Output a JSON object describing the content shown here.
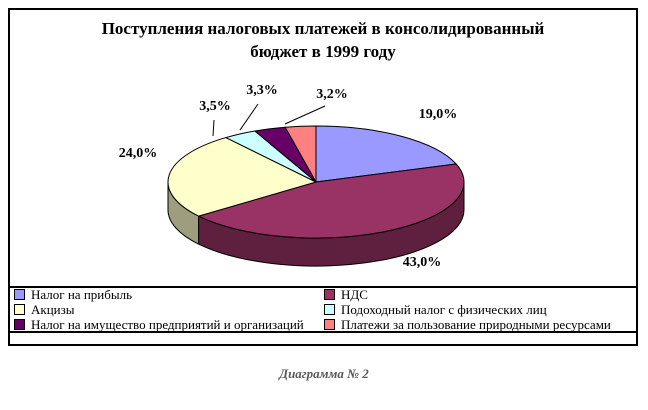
{
  "header": {
    "line1": "Поступления налоговых платежей в консолидированный",
    "line2": "бюджет в 1999 году"
  },
  "caption": "Диаграмма № 2",
  "chart_data": {
    "type": "pie",
    "style": "3d-pie",
    "title": "Поступления налоговых платежей в консолидированный бюджет в 1999 году",
    "labels": [
      "Налог на прибыль",
      "НДС",
      "Акцизы",
      "Подоходный налог с физических лиц",
      "Налог на имущество предприятий и организаций",
      "Платежи за пользование природными ресурсами"
    ],
    "values": [
      19.0,
      43.0,
      24.0,
      3.5,
      3.3,
      3.2
    ],
    "value_labels": [
      "19,0%",
      "43,0%",
      "24,0%",
      "3,5%",
      "3,3%",
      "3,2%"
    ],
    "colors": [
      "#9999FF",
      "#993366",
      "#FFFFCC",
      "#CCFFFF",
      "#660066",
      "#FF8080"
    ],
    "legend_position": "bottom-two-columns",
    "start_angle_deg": 0,
    "clockwise": true,
    "units": "percent"
  }
}
